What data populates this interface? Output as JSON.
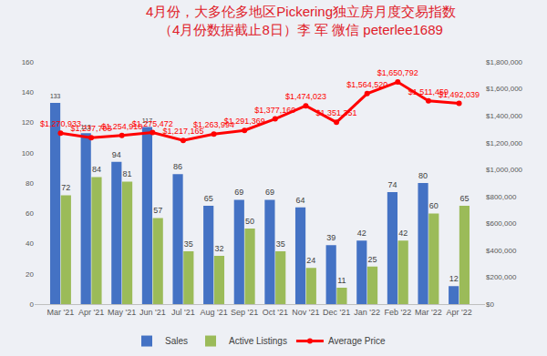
{
  "chart_data": {
    "type": "bar",
    "title": "4月份，大多伦多地区Pickering独立房月度交易指数",
    "subtitle": "（4月份数据截止8日）李 军 微信 peterlee1689",
    "categories": [
      "Mar '21",
      "Apr '21",
      "May '21",
      "Jun '21",
      "Jul '21",
      "Aug '21",
      "Sep '21",
      "Oct '21",
      "Nov '21",
      "Dec '21",
      "Jan '22",
      "Feb '22",
      "Mar '22",
      "Apr '22"
    ],
    "series": [
      {
        "name": "Sales",
        "type": "bar",
        "color": "#4472c4",
        "values": [
          133,
          113,
          94,
          117,
          86,
          65,
          69,
          69,
          64,
          39,
          42,
          74,
          80,
          12
        ]
      },
      {
        "name": "Active Listings",
        "type": "bar",
        "color": "#9bbb59",
        "values": [
          72,
          84,
          81,
          57,
          35,
          32,
          50,
          35,
          24,
          11,
          25,
          42,
          60,
          65
        ]
      },
      {
        "name": "Average Price",
        "type": "line",
        "axis": "y2",
        "color": "#ff0000",
        "marker": "circle",
        "line_style": "solid",
        "values": [
          1270933,
          1237703,
          1254918,
          1275472,
          1217165,
          1263994,
          1291369,
          1377160,
          1474023,
          1351351,
          1564520,
          1650792,
          1511459,
          1492039
        ],
        "value_labels": [
          "$1,270,933",
          "$1,237,703",
          "$1,254,918",
          "$1,275,472",
          "$1,217,165",
          "$1,263,994",
          "$1,291,369",
          "$1,377,160",
          "$1,474,023",
          "$1,351,351",
          "$1,564,520",
          "$1,650,792",
          "$1,511,459",
          "$1,492,039"
        ]
      }
    ],
    "ylim": [
      0,
      160
    ],
    "yticks": [
      0,
      20,
      40,
      60,
      80,
      100,
      120,
      140,
      160
    ],
    "y2lim": [
      0,
      1800000
    ],
    "y2ticks": [
      {
        "value": 0,
        "label": "$0"
      },
      {
        "value": 200000,
        "label": "$200,000"
      },
      {
        "value": 400000,
        "label": "$400,000"
      },
      {
        "value": 600000,
        "label": "$600,000"
      },
      {
        "value": 800000,
        "label": "$800,000"
      },
      {
        "value": 1000000,
        "label": "$1,000,000"
      },
      {
        "value": 1200000,
        "label": "$1,200,000"
      },
      {
        "value": 1400000,
        "label": "$1,400,000"
      },
      {
        "value": 1600000,
        "label": "$1,600,000"
      },
      {
        "value": 1800000,
        "label": "$1,800,000"
      }
    ],
    "grid": false,
    "legend": "bottom",
    "data_labels": true
  }
}
